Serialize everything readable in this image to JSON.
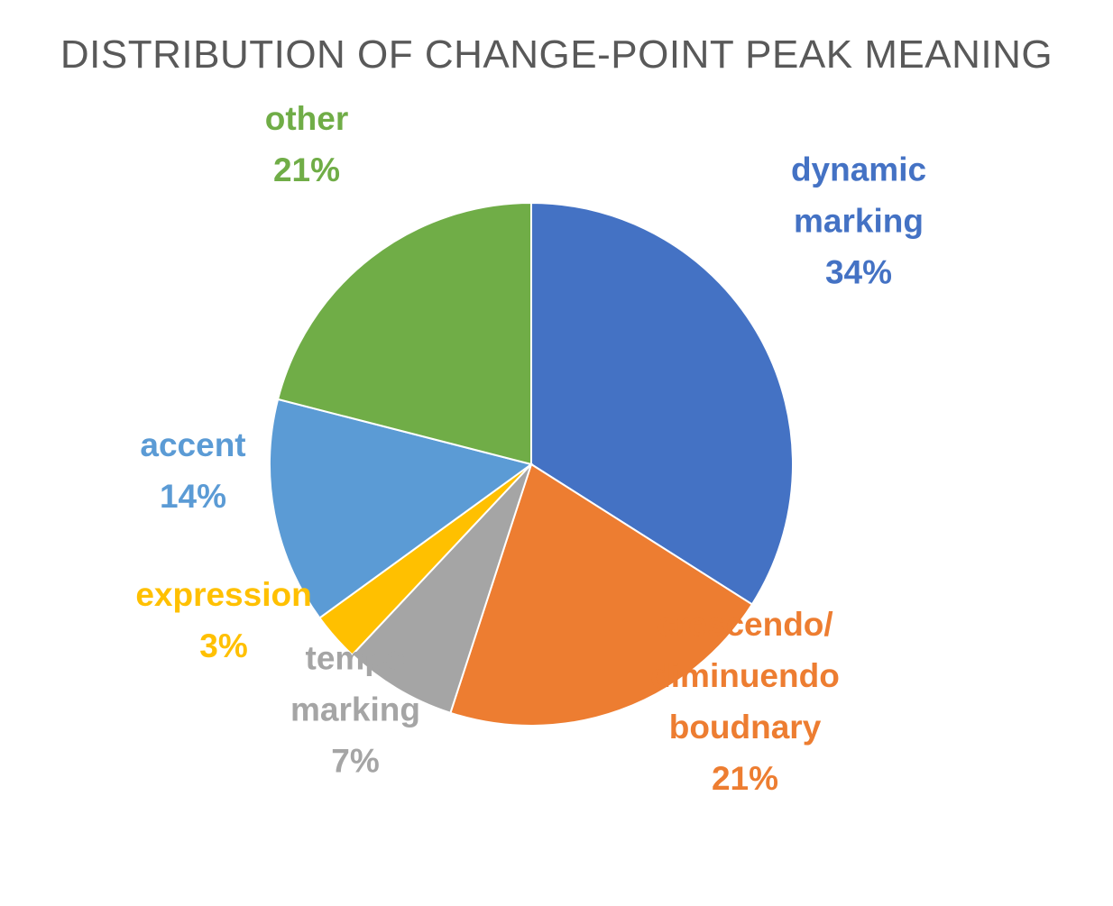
{
  "chart_data": {
    "type": "pie",
    "title": "DISTRIBUTION OF CHANGE-POINT PEAK MEANING",
    "slices": [
      {
        "label_lines": [
          "dynamic",
          "marking"
        ],
        "value": 34,
        "value_label": "34%",
        "color": "#4472C4"
      },
      {
        "label_lines": [
          "crescendo/",
          "diminuendo",
          "boudnary"
        ],
        "value": 21,
        "value_label": "21%",
        "color": "#ED7D31"
      },
      {
        "label_lines": [
          "tempo",
          "marking"
        ],
        "value": 7,
        "value_label": "7%",
        "color": "#A5A5A5"
      },
      {
        "label_lines": [
          "expression"
        ],
        "value": 3,
        "value_label": "3%",
        "color": "#FFC000"
      },
      {
        "label_lines": [
          "accent"
        ],
        "value": 14,
        "value_label": "14%",
        "color": "#5B9BD5"
      },
      {
        "label_lines": [
          "other"
        ],
        "value": 21,
        "value_label": "21%",
        "color": "#70AD47"
      }
    ],
    "legend": "none",
    "start_angle": "12 o'clock",
    "direction": "clockwise"
  }
}
